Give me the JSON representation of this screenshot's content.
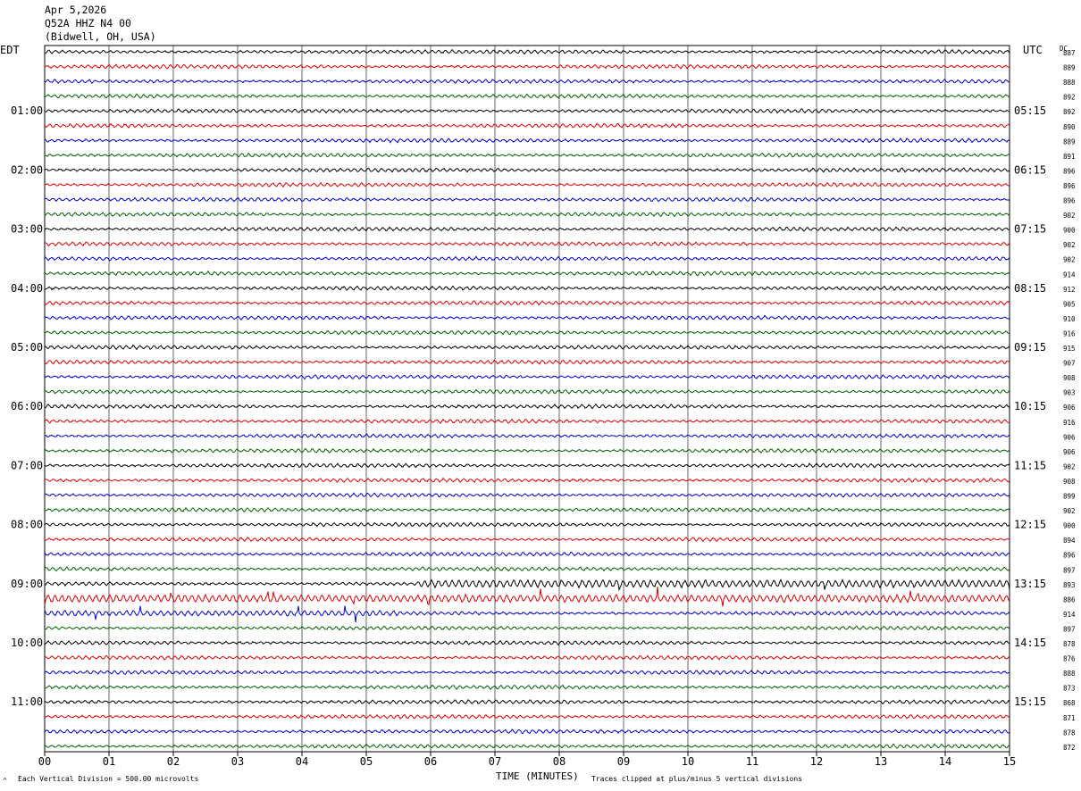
{
  "header": {
    "date": "Apr 5,2026",
    "station": "Q52A HHZ N4 00",
    "location": "(Bidwell, OH, USA)"
  },
  "left_timezone": "EDT",
  "right_timezone": "UTC",
  "dc_header": "DC",
  "footer": {
    "scale_note": "Each Vertical Division =  500.00 microvolts",
    "x_title": "TIME (MINUTES)",
    "clip_note": "Traces clipped at plus/minus 5 vertical divisions",
    "corner_mark": "^"
  },
  "colors": {
    "trace_cycle": [
      "#000000",
      "#e00000",
      "#0000d0",
      "#006000"
    ],
    "grid": "#000000"
  },
  "chart_data": {
    "type": "line",
    "title": "Q52A HHZ N4 00",
    "xlabel": "TIME (MINUTES)",
    "xlim": [
      0,
      15
    ],
    "x_ticks": [
      "00",
      "01",
      "02",
      "03",
      "04",
      "05",
      "06",
      "07",
      "08",
      "09",
      "10",
      "11",
      "12",
      "13",
      "14",
      "15"
    ],
    "left_hour_labels": [
      "01:00",
      "02:00",
      "03:00",
      "04:00",
      "05:00",
      "06:00",
      "07:00",
      "08:00",
      "09:00",
      "10:00",
      "11:00"
    ],
    "right_hour_labels": [
      "05:15",
      "06:15",
      "07:15",
      "08:15",
      "09:15",
      "10:15",
      "11:15",
      "12:15",
      "13:15",
      "14:15",
      "15:15"
    ],
    "trace_count": 48,
    "dc_offsets": [
      887,
      889,
      888,
      892,
      892,
      890,
      889,
      891,
      896,
      896,
      896,
      902,
      900,
      902,
      902,
      914,
      912,
      905,
      910,
      916,
      915,
      907,
      908,
      903,
      906,
      916,
      906,
      906,
      902,
      908,
      899,
      902,
      900,
      894,
      896,
      897,
      893,
      886,
      914,
      897,
      878,
      876,
      888,
      873,
      868,
      871,
      878,
      872
    ],
    "active_traces": [
      {
        "index": 36,
        "start_minute": 5.8,
        "end_minute": 15,
        "level": "high"
      },
      {
        "index": 37,
        "start_minute": 0,
        "end_minute": 15,
        "level": "high"
      },
      {
        "index": 38,
        "start_minute": 0,
        "end_minute": 5.5,
        "level": "medium"
      }
    ]
  }
}
